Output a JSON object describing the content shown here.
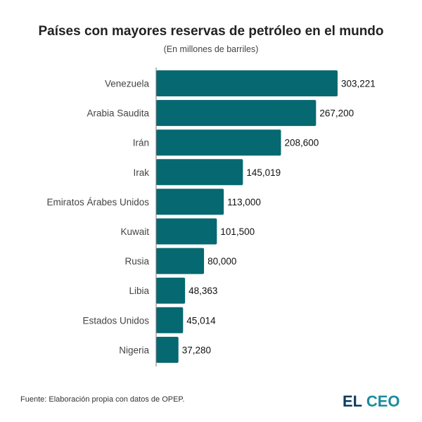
{
  "chart_data": {
    "type": "bar",
    "orientation": "horizontal",
    "title": "Países con mayores reservas de petróleo en el mundo",
    "subtitle": "(En millones de barriles)",
    "categories": [
      "Venezuela",
      "Arabia Saudita",
      "Irán",
      "Irak",
      "Emiratos Árabes Unidos",
      "Kuwait",
      "Rusia",
      "Libia",
      "Estados Unidos",
      "Nigeria"
    ],
    "values": [
      303221,
      267200,
      208600,
      145019,
      113000,
      101500,
      80000,
      48363,
      45014,
      37280
    ],
    "labels": [
      "303,221",
      "267,200",
      "208,600",
      "145,019",
      "113,000",
      "101,500",
      "80,000",
      "48,363",
      "45,014",
      "37,280"
    ],
    "xlim": [
      0,
      303221
    ],
    "grid": false,
    "bar_color": "#066870"
  },
  "footer": {
    "source": "Fuente: Elaboración propia con datos de OPEP.",
    "logo_part1": "EL",
    "logo_part2": "CEO"
  }
}
